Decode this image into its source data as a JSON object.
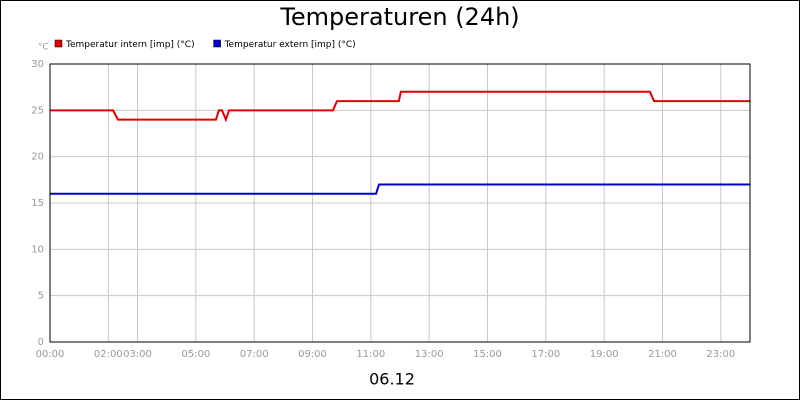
{
  "chart_data": {
    "type": "line",
    "title": "Temperaturen (24h)",
    "y_label": "°C",
    "x_label": "06.12",
    "series": [
      {
        "name": "Temperatur intern [imp] (°C)",
        "color": "#e00000",
        "x": [
          0,
          2.16,
          2.33,
          5.69,
          5.79,
          5.9,
          6.03,
          6.14,
          9.7,
          9.84,
          11.96,
          12.03,
          20.57,
          20.71,
          24
        ],
        "values": [
          25,
          25,
          24,
          24,
          25,
          25,
          24,
          25,
          25,
          26,
          26,
          27,
          27,
          26,
          26
        ]
      },
      {
        "name": "Temperatur extern [imp] (°C)",
        "color": "#0000c8",
        "x": [
          0,
          11.18,
          11.28,
          24
        ],
        "values": [
          16,
          16,
          17,
          17
        ]
      }
    ],
    "xlim": [
      0,
      24
    ],
    "xticks": [
      {
        "value": 0,
        "label": "00:00"
      },
      {
        "value": 2,
        "label": "02:00"
      },
      {
        "value": 3,
        "label": "03:00"
      },
      {
        "value": 5,
        "label": "05:00"
      },
      {
        "value": 7,
        "label": "07:00"
      },
      {
        "value": 9,
        "label": "09:00"
      },
      {
        "value": 11,
        "label": "11:00"
      },
      {
        "value": 13,
        "label": "13:00"
      },
      {
        "value": 15,
        "label": "15:00"
      },
      {
        "value": 17,
        "label": "17:00"
      },
      {
        "value": 19,
        "label": "19:00"
      },
      {
        "value": 21,
        "label": "21:00"
      },
      {
        "value": 23,
        "label": "23:00"
      }
    ],
    "ylim": [
      0,
      30
    ],
    "yticks": [
      0,
      5,
      10,
      15,
      20,
      25,
      30
    ],
    "grid": true
  }
}
